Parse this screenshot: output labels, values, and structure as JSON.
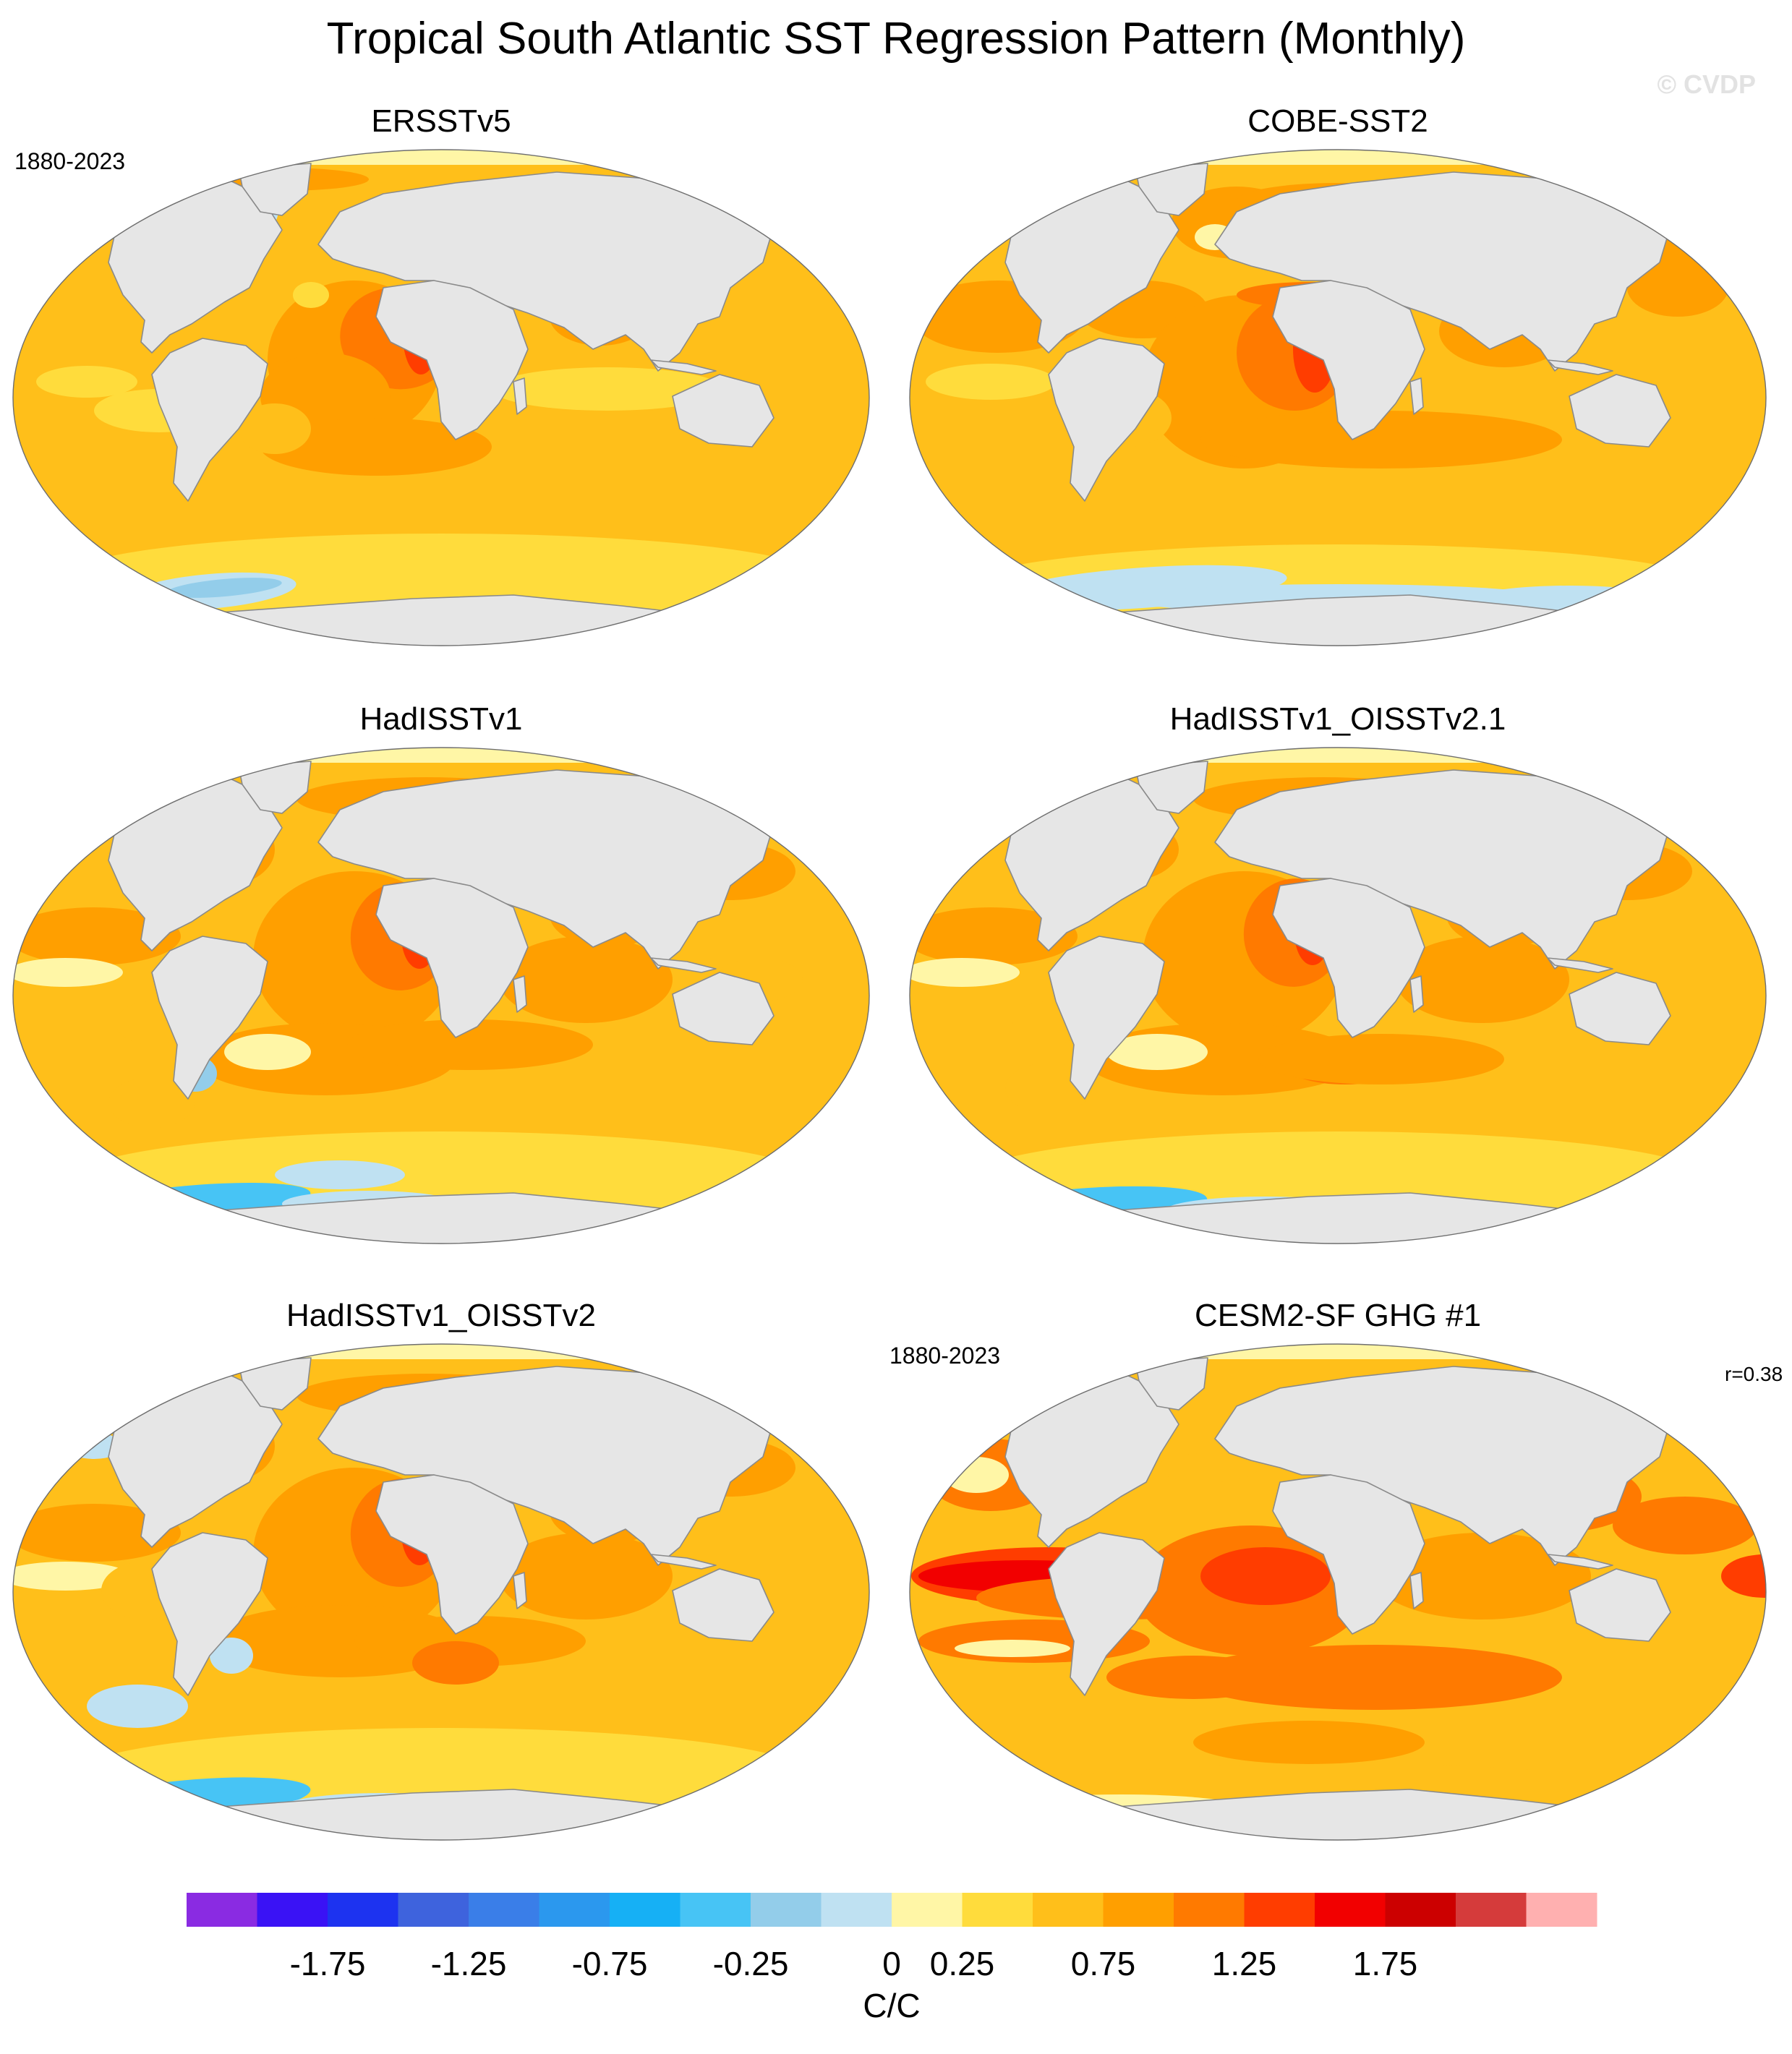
{
  "figure": {
    "title": "Tropical South Atlantic SST Regression Pattern (Monthly)",
    "watermark": "© CVDP"
  },
  "panels": [
    {
      "title": "ERSSTv5",
      "years": "1880-2023",
      "r": "",
      "pattern": "ersst"
    },
    {
      "title": "COBE-SST2",
      "years": "",
      "r": "",
      "pattern": "cobe"
    },
    {
      "title": "HadISSTv1",
      "years": "",
      "r": "",
      "pattern": "hadisst"
    },
    {
      "title": "HadISSTv1_OISSTv2.1",
      "years": "",
      "r": "",
      "pattern": "oisst21"
    },
    {
      "title": "HadISSTv1_OISSTv2",
      "years": "",
      "r": "",
      "pattern": "oisst2"
    },
    {
      "title": "CESM2-SF GHG #1",
      "years": "1880-2023",
      "r": "r=0.38",
      "pattern": "cesm"
    }
  ],
  "colorbar": {
    "unit": "C/C",
    "tick_labels": [
      "-1.75",
      "-1.25",
      "-0.75",
      "-0.25",
      "0",
      "0.25",
      "0.75",
      "1.25",
      "1.75"
    ],
    "colors": [
      "#8a2be2",
      "#3a12f5",
      "#1d33f0",
      "#3e63dd",
      "#3a7ee8",
      "#2b98ee",
      "#16b0f5",
      "#47c4f5",
      "#93cdea",
      "#bfe1f2",
      "#fff6a6",
      "#ffdc3c",
      "#ffbf1a",
      "#ff9f00",
      "#ff7a00",
      "#ff3d00",
      "#f20000",
      "#cc0000",
      "#d53b3b",
      "#ffb0b0"
    ]
  },
  "palette": {
    "land": "#e6e6e6",
    "coast": "#8a8a8a",
    "base_ocean": "#ffbf1a"
  }
}
